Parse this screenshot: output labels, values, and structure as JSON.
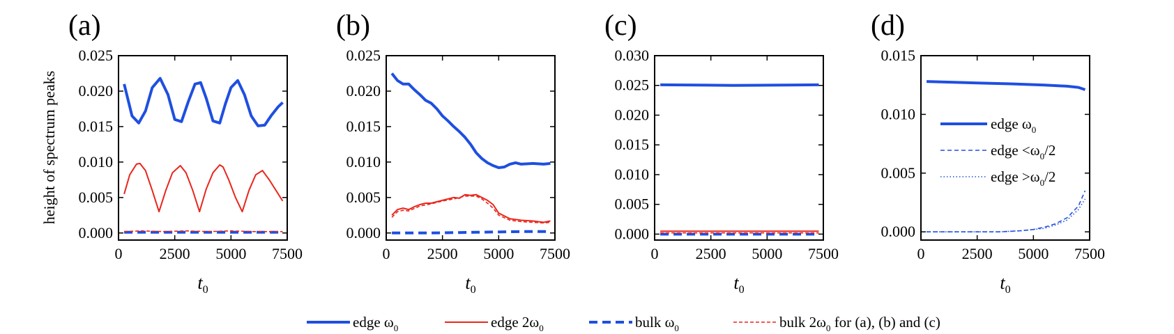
{
  "colors": {
    "blue": "#1f4fe0",
    "red": "#e8261c",
    "axis": "#000000"
  },
  "ylabel": "height of spectrum peaks",
  "xlabel_main": "t",
  "xlabel_sub": "0",
  "bottom_legend": [
    {
      "label": "edge ω",
      "sub": "0",
      "style": "blue-solid"
    },
    {
      "label": "edge 2ω",
      "sub": "0",
      "style": "red-solid"
    },
    {
      "label": "bulk ω",
      "sub": "0",
      "style": "blue-dash"
    },
    {
      "label": "bulk 2ω",
      "sub": "0",
      "suffix": " for (a), (b) and (c)",
      "style": "red-dash"
    }
  ],
  "chart_data": [
    {
      "panel": "(a)",
      "type": "line",
      "xlim": [
        0,
        7500
      ],
      "ylim": [
        -0.001,
        0.025
      ],
      "xticks": [
        "0",
        "2500",
        "5000",
        "7500"
      ],
      "yticks": [
        "0.000",
        "0.005",
        "0.010",
        "0.015",
        "0.020",
        "0.025"
      ],
      "series": [
        {
          "name": "edge ω0",
          "style": "blue-solid",
          "x": [
            250,
            600,
            900,
            1200,
            1500,
            1850,
            2200,
            2500,
            2800,
            3100,
            3400,
            3650,
            3900,
            4200,
            4500,
            4750,
            5000,
            5300,
            5600,
            5900,
            6200,
            6500,
            6800,
            7100,
            7300
          ],
          "y": [
            0.021,
            0.0165,
            0.0155,
            0.0172,
            0.0205,
            0.0218,
            0.0195,
            0.016,
            0.0157,
            0.0185,
            0.021,
            0.0212,
            0.019,
            0.0158,
            0.0155,
            0.0182,
            0.0205,
            0.0215,
            0.0195,
            0.0165,
            0.0151,
            0.0152,
            0.0166,
            0.0178,
            0.0184
          ]
        },
        {
          "name": "edge 2ω0",
          "style": "red-solid",
          "x": [
            250,
            500,
            800,
            950,
            1200,
            1500,
            1800,
            2100,
            2400,
            2750,
            3000,
            3300,
            3600,
            3900,
            4200,
            4500,
            4650,
            4900,
            5200,
            5500,
            5800,
            6100,
            6400,
            6700,
            7000,
            7300
          ],
          "y": [
            0.0055,
            0.0082,
            0.0097,
            0.0098,
            0.0088,
            0.006,
            0.003,
            0.006,
            0.0085,
            0.0095,
            0.0085,
            0.006,
            0.003,
            0.0062,
            0.0085,
            0.0096,
            0.0093,
            0.0075,
            0.005,
            0.003,
            0.006,
            0.0082,
            0.0088,
            0.0075,
            0.006,
            0.0045
          ]
        },
        {
          "name": "bulk ω0",
          "style": "blue-dash",
          "x": [
            250,
            1500,
            3000,
            4500,
            6000,
            7300
          ],
          "y": [
            0.0001,
            0.0001,
            0.0001,
            0.0001,
            0.0001,
            0.0001
          ]
        },
        {
          "name": "bulk 2ω0",
          "style": "red-dash",
          "x": [
            250,
            1000,
            2000,
            3000,
            4000,
            5000,
            6000,
            7300
          ],
          "y": [
            0.0002,
            0.0003,
            0.0002,
            0.0003,
            0.0002,
            0.0003,
            0.0002,
            0.0002
          ]
        }
      ]
    },
    {
      "panel": "(b)",
      "type": "line",
      "xlim": [
        0,
        7500
      ],
      "ylim": [
        -0.001,
        0.025
      ],
      "xticks": [
        "0",
        "2500",
        "5000",
        "7500"
      ],
      "yticks": [
        "0.000",
        "0.005",
        "0.010",
        "0.015",
        "0.020",
        "0.025"
      ],
      "series": [
        {
          "name": "edge ω0",
          "style": "blue-solid",
          "x": [
            250,
            500,
            750,
            1000,
            1250,
            1500,
            1750,
            2000,
            2250,
            2500,
            2750,
            3000,
            3250,
            3500,
            3750,
            4000,
            4250,
            4500,
            4750,
            5000,
            5250,
            5500,
            5750,
            6000,
            6500,
            7000,
            7300
          ],
          "y": [
            0.0225,
            0.0215,
            0.021,
            0.021,
            0.0202,
            0.0195,
            0.0187,
            0.0183,
            0.0175,
            0.0165,
            0.0158,
            0.015,
            0.0143,
            0.0135,
            0.0125,
            0.0113,
            0.0105,
            0.0099,
            0.0095,
            0.0092,
            0.0093,
            0.0097,
            0.0099,
            0.0097,
            0.0098,
            0.0097,
            0.0098
          ]
        },
        {
          "name": "edge 2ω0",
          "style": "red-solid",
          "x": [
            250,
            500,
            750,
            1000,
            1250,
            1500,
            1750,
            2000,
            2500,
            3000,
            3250,
            3500,
            3750,
            4000,
            4250,
            4500,
            4750,
            5000,
            5500,
            6000,
            6500,
            7000,
            7300
          ],
          "y": [
            0.0025,
            0.0033,
            0.0035,
            0.0033,
            0.0037,
            0.004,
            0.0042,
            0.0042,
            0.0046,
            0.005,
            0.0049,
            0.0054,
            0.0053,
            0.0054,
            0.005,
            0.0046,
            0.004,
            0.0028,
            0.002,
            0.0018,
            0.0017,
            0.0015,
            0.0017
          ]
        },
        {
          "name": "bulk ω0",
          "style": "blue-dash",
          "x": [
            250,
            2000,
            4000,
            6000,
            7300
          ],
          "y": [
            0.0,
            0.0,
            0.0001,
            0.0002,
            0.0002
          ]
        },
        {
          "name": "bulk 2ω0",
          "style": "red-dash",
          "x": [
            250,
            500,
            750,
            1000,
            1500,
            2000,
            2500,
            3000,
            3500,
            4000,
            4250,
            4500,
            4750,
            5000,
            5500,
            6000,
            6500,
            7000,
            7300
          ],
          "y": [
            0.0022,
            0.003,
            0.0032,
            0.0031,
            0.0038,
            0.0041,
            0.0045,
            0.0048,
            0.0052,
            0.0052,
            0.0048,
            0.0042,
            0.0035,
            0.0025,
            0.0018,
            0.0016,
            0.0015,
            0.0014,
            0.0015
          ]
        }
      ]
    },
    {
      "panel": "(c)",
      "type": "line",
      "xlim": [
        0,
        7500
      ],
      "ylim": [
        -0.001,
        0.03
      ],
      "xticks": [
        "0",
        "2500",
        "5000",
        "7500"
      ],
      "yticks": [
        "0.000",
        "0.005",
        "0.010",
        "0.015",
        "0.020",
        "0.025",
        "0.030"
      ],
      "series": [
        {
          "name": "edge ω0",
          "style": "blue-solid",
          "x": [
            250,
            3500,
            7300
          ],
          "y": [
            0.0251,
            0.025,
            0.0251
          ]
        },
        {
          "name": "edge 2ω0",
          "style": "red-solid",
          "x": [
            250,
            7300
          ],
          "y": [
            0.0005,
            0.0005
          ]
        },
        {
          "name": "bulk ω0",
          "style": "blue-dash",
          "x": [
            250,
            7300
          ],
          "y": [
            0.0,
            0.0
          ]
        },
        {
          "name": "bulk 2ω0",
          "style": "red-dash",
          "x": [
            250,
            7300
          ],
          "y": [
            0.0002,
            0.0002
          ]
        }
      ]
    },
    {
      "panel": "(d)",
      "type": "line",
      "xlim": [
        0,
        7500
      ],
      "ylim": [
        -0.0007,
        0.015
      ],
      "xticks": [
        "0",
        "2500",
        "5000",
        "7500"
      ],
      "yticks": [
        "0.000",
        "0.005",
        "0.010",
        "0.015"
      ],
      "legend": [
        {
          "label": "edge ω",
          "sub": "0",
          "style": "blue-solid"
        },
        {
          "label": "edge <ω",
          "sub": "0",
          "suffix": "/2",
          "style": "blue-thin-dash"
        },
        {
          "label": "edge >ω",
          "sub": "0",
          "suffix": "/2",
          "style": "blue-dot"
        }
      ],
      "series": [
        {
          "name": "edge ω0",
          "style": "blue-solid",
          "x": [
            250,
            2000,
            4000,
            5500,
            6500,
            7000,
            7300
          ],
          "y": [
            0.0128,
            0.0127,
            0.0126,
            0.0125,
            0.0124,
            0.0123,
            0.0121
          ]
        },
        {
          "name": "edge <ω0/2",
          "style": "blue-thin-dash",
          "x": [
            250,
            2000,
            3500,
            4500,
            5000,
            5500,
            6000,
            6500,
            7000,
            7300
          ],
          "y": [
            0.0,
            0.0,
            0.0,
            0.0001,
            0.0002,
            0.0004,
            0.0007,
            0.0012,
            0.0022,
            0.0035
          ]
        },
        {
          "name": "edge >ω0/2",
          "style": "blue-dot",
          "x": [
            250,
            2000,
            3500,
            4500,
            5000,
            5500,
            6000,
            6500,
            7000,
            7300
          ],
          "y": [
            0.0,
            0.0,
            0.0,
            0.0001,
            0.0002,
            0.0003,
            0.0006,
            0.001,
            0.0019,
            0.0028
          ]
        }
      ]
    }
  ]
}
